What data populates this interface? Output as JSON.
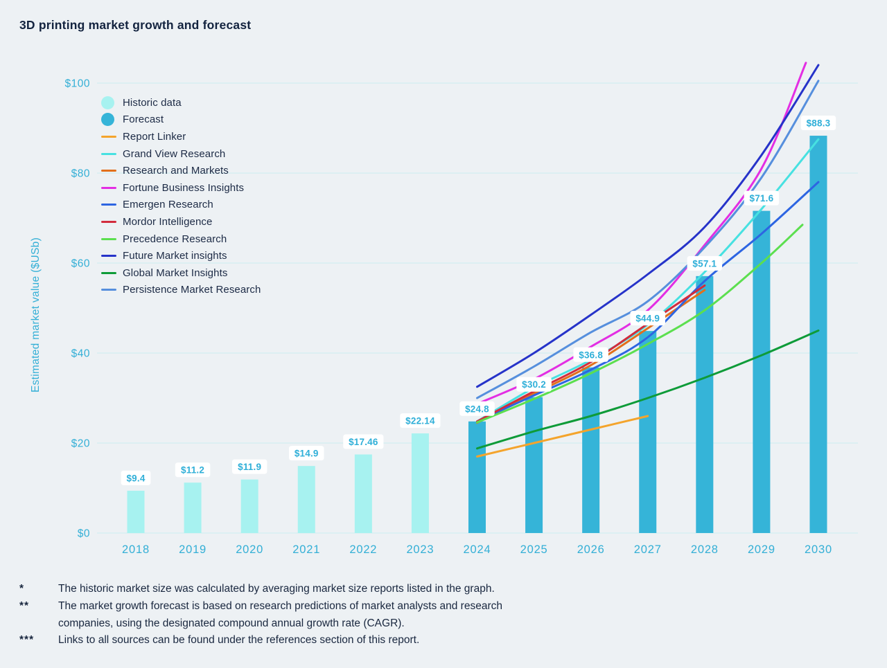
{
  "title": "3D printing market growth and forecast",
  "chart_data": {
    "type": "bar+line",
    "title": "3D printing market growth and forecast",
    "ylabel": "Estimated market value ($USb)",
    "ylim": [
      0,
      105
    ],
    "grid": true,
    "yticks": [
      {
        "value": 0,
        "label": "$0"
      },
      {
        "value": 20,
        "label": "$20"
      },
      {
        "value": 40,
        "label": "$40"
      },
      {
        "value": 60,
        "label": "$60"
      },
      {
        "value": 80,
        "label": "$80"
      },
      {
        "value": 100,
        "label": "$100"
      }
    ],
    "categories": [
      "2018",
      "2019",
      "2020",
      "2021",
      "2022",
      "2023",
      "2024",
      "2025",
      "2026",
      "2027",
      "2028",
      "2029",
      "2030"
    ],
    "historic_color": "#a7f2f0",
    "forecast_color": "#35b4d8",
    "bars": [
      {
        "year": "2018",
        "value": 9.4,
        "label": "$9.4",
        "kind": "historic"
      },
      {
        "year": "2019",
        "value": 11.2,
        "label": "$11.2",
        "kind": "historic"
      },
      {
        "year": "2020",
        "value": 11.9,
        "label": "$11.9",
        "kind": "historic"
      },
      {
        "year": "2021",
        "value": 14.9,
        "label": "$14.9",
        "kind": "historic"
      },
      {
        "year": "2022",
        "value": 17.46,
        "label": "$17.46",
        "kind": "historic"
      },
      {
        "year": "2023",
        "value": 22.14,
        "label": "$22.14",
        "kind": "historic"
      },
      {
        "year": "2024",
        "value": 24.8,
        "label": "$24.8",
        "kind": "forecast"
      },
      {
        "year": "2025",
        "value": 30.2,
        "label": "$30.2",
        "kind": "forecast"
      },
      {
        "year": "2026",
        "value": 36.8,
        "label": "$36.8",
        "kind": "forecast"
      },
      {
        "year": "2027",
        "value": 44.9,
        "label": "$44.9",
        "kind": "forecast"
      },
      {
        "year": "2028",
        "value": 57.1,
        "label": "$57.1",
        "kind": "forecast"
      },
      {
        "year": "2029",
        "value": 71.6,
        "label": "$71.6",
        "kind": "forecast"
      },
      {
        "year": "2030",
        "value": 88.3,
        "label": "$88.3",
        "kind": "forecast"
      }
    ],
    "lines_start_year": "2024",
    "series": [
      {
        "name": "Report Linker",
        "color": "#f4a42c",
        "points": [
          [
            0,
            17
          ],
          [
            1,
            20
          ],
          [
            2,
            23
          ],
          [
            3,
            26
          ]
        ]
      },
      {
        "name": "Grand View Research",
        "color": "#47e1e1",
        "points": [
          [
            0,
            24.8
          ],
          [
            1,
            32.3
          ],
          [
            2,
            38.5
          ],
          [
            3,
            46.3
          ],
          [
            4,
            58
          ],
          [
            5,
            72
          ],
          [
            6,
            87.5
          ]
        ]
      },
      {
        "name": "Research and Markets",
        "color": "#e2701c",
        "points": [
          [
            0,
            24.5
          ],
          [
            1,
            31
          ],
          [
            2,
            37.3
          ],
          [
            3,
            45.5
          ],
          [
            4,
            54
          ]
        ]
      },
      {
        "name": "Fortune Business Insights",
        "color": "#e32ee3",
        "points": [
          [
            0,
            28.7
          ],
          [
            1,
            34.2
          ],
          [
            2,
            41.4
          ],
          [
            3,
            49.5
          ],
          [
            4,
            64
          ],
          [
            5,
            81
          ],
          [
            5.78,
            104.5
          ]
        ]
      },
      {
        "name": "Emergen Research",
        "color": "#2d65e2",
        "points": [
          [
            0,
            24.8
          ],
          [
            1,
            30.6
          ],
          [
            2,
            36.3
          ],
          [
            3,
            43.5
          ],
          [
            4,
            56
          ],
          [
            5,
            66.5
          ],
          [
            6,
            78
          ]
        ]
      },
      {
        "name": "Mordor Intelligence",
        "color": "#d22c3c",
        "points": [
          [
            0,
            24.8
          ],
          [
            1,
            31.5
          ],
          [
            2,
            38
          ],
          [
            3,
            46.5
          ],
          [
            4,
            55
          ]
        ]
      },
      {
        "name": "Precedence Research",
        "color": "#5cdf4f",
        "points": [
          [
            0,
            24.6
          ],
          [
            1,
            29.8
          ],
          [
            2,
            35.5
          ],
          [
            3,
            42
          ],
          [
            4,
            49.5
          ],
          [
            5,
            60
          ],
          [
            5.72,
            68.5
          ]
        ]
      },
      {
        "name": "Future Market insights",
        "color": "#2633c9",
        "points": [
          [
            0,
            32.5
          ],
          [
            1,
            40
          ],
          [
            2,
            48.5
          ],
          [
            3,
            57.5
          ],
          [
            4,
            68
          ],
          [
            5,
            84
          ],
          [
            6,
            104
          ]
        ]
      },
      {
        "name": "Global Market Insights",
        "color": "#0e9b38",
        "points": [
          [
            0,
            18.8
          ],
          [
            1,
            22.6
          ],
          [
            2,
            26
          ],
          [
            3,
            30
          ],
          [
            4,
            34.5
          ],
          [
            5,
            39.5
          ],
          [
            6,
            45
          ]
        ]
      },
      {
        "name": "Persistence Market Research",
        "color": "#568fdd",
        "points": [
          [
            0,
            30
          ],
          [
            1,
            37
          ],
          [
            2,
            44.6
          ],
          [
            3,
            51.5
          ],
          [
            4,
            63.5
          ],
          [
            5,
            79
          ],
          [
            6,
            100.5
          ]
        ]
      }
    ]
  },
  "legend": {
    "items": [
      {
        "label": "Historic data",
        "swatch": "circle",
        "color": "#a7f2f0"
      },
      {
        "label": "Forecast",
        "swatch": "circle",
        "color": "#35b4d8"
      },
      {
        "label": "Report Linker",
        "swatch": "line",
        "color": "#f4a42c"
      },
      {
        "label": "Grand View Research",
        "swatch": "line",
        "color": "#47e1e1"
      },
      {
        "label": "Research and Markets",
        "swatch": "line",
        "color": "#e2701c"
      },
      {
        "label": "Fortune Business Insights",
        "swatch": "line",
        "color": "#e32ee3"
      },
      {
        "label": "Emergen Research",
        "swatch": "line",
        "color": "#2d65e2"
      },
      {
        "label": "Mordor Intelligence",
        "swatch": "line",
        "color": "#d22c3c"
      },
      {
        "label": "Precedence Research",
        "swatch": "line",
        "color": "#5cdf4f"
      },
      {
        "label": "Future Market insights",
        "swatch": "line",
        "color": "#2633c9"
      },
      {
        "label": "Global Market Insights",
        "swatch": "line",
        "color": "#0e9b38"
      },
      {
        "label": "Persistence Market Research",
        "swatch": "line",
        "color": "#568fdd"
      }
    ]
  },
  "footnotes": [
    {
      "marker": "*",
      "lines": [
        "The historic market size was calculated by averaging market size reports listed in the graph."
      ]
    },
    {
      "marker": "**",
      "lines": [
        "The market growth forecast is based on research predictions of market analysts and research",
        "companies, using the designated compound annual growth rate (CAGR)."
      ]
    },
    {
      "marker": "***",
      "lines": [
        "Links to all sources can be found under the references section of this report."
      ]
    }
  ],
  "colors": {
    "background": "#edf1f4",
    "axis_text": "#33afd6",
    "gridline": "#d2eef0",
    "title_text": "#13233f",
    "value_label_text": "#2fafd8",
    "value_label_bg": "#ffffff"
  }
}
